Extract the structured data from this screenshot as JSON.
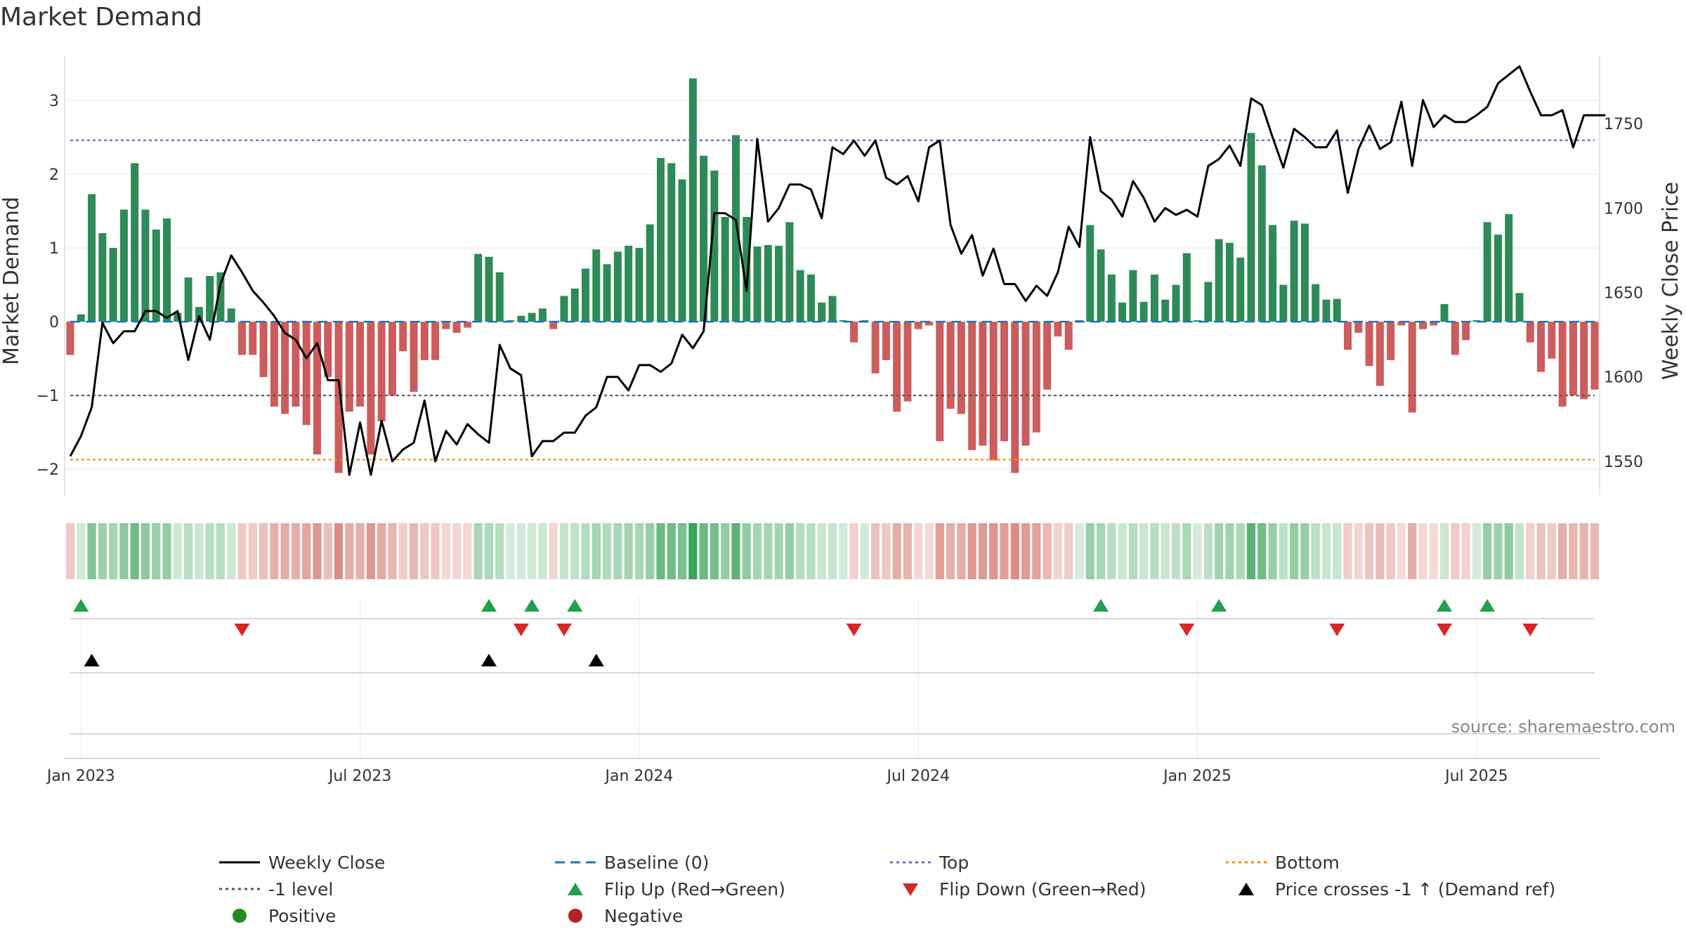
{
  "title": "Market Demand",
  "source_note": "source: sharemaestro.com",
  "colors": {
    "positive": "#2e8b57",
    "negative": "#cd5c5c",
    "close_line": "#000000",
    "baseline": "#1f77b4",
    "top": "#6a6acd",
    "bottom": "#ff8c00",
    "minus1": "#555555",
    "flip_up": "#22a04b",
    "flip_down": "#d62728"
  },
  "chart_data": {
    "type": "bar",
    "title": "Market Demand",
    "ylabel": "Market Demand",
    "y2label": "Weekly Close Price",
    "ylim": [
      -2.35,
      3.6
    ],
    "y2lim": [
      1530,
      1790
    ],
    "yticks": [
      "-2",
      "-1",
      "0",
      "1",
      "2",
      "3"
    ],
    "y2ticks": [
      "1550",
      "1600",
      "1650",
      "1700",
      "1750"
    ],
    "x_ticks": [
      {
        "label": "Jan 2023",
        "week": 1
      },
      {
        "label": "Jul 2023",
        "week": 27
      },
      {
        "label": "Jan 2024",
        "week": 53
      },
      {
        "label": "Jul 2024",
        "week": 79
      },
      {
        "label": "Jan 2025",
        "week": 105
      },
      {
        "label": "Jul 2025",
        "week": 131
      }
    ],
    "reference_lines": {
      "top": 2.46,
      "bottom": -1.87,
      "minus1": -1.0,
      "baseline": 0
    },
    "demand": [
      -0.45,
      0.1,
      1.73,
      1.2,
      1.0,
      1.52,
      2.15,
      1.52,
      1.25,
      1.4,
      0.12,
      0.6,
      0.2,
      0.62,
      0.67,
      0.18,
      -0.45,
      -0.45,
      -0.75,
      -1.15,
      -1.25,
      -1.15,
      -1.4,
      -1.8,
      -0.75,
      -2.05,
      -1.22,
      -1.15,
      -1.8,
      -1.35,
      -1.0,
      -0.4,
      -0.95,
      -0.52,
      -0.52,
      -0.1,
      -0.15,
      -0.08,
      0.92,
      0.88,
      0.67,
      0.02,
      0.08,
      0.12,
      0.18,
      -0.1,
      0.35,
      0.45,
      0.72,
      0.98,
      0.78,
      0.95,
      1.03,
      1.0,
      1.32,
      2.22,
      2.15,
      1.93,
      3.3,
      2.25,
      2.05,
      1.42,
      2.53,
      1.42,
      1.02,
      1.04,
      1.03,
      1.35,
      0.7,
      0.64,
      0.26,
      0.35,
      0.02,
      -0.28,
      0.02,
      -0.7,
      -0.52,
      -1.22,
      -1.08,
      -0.1,
      -0.05,
      -1.62,
      -1.18,
      -1.25,
      -1.74,
      -1.68,
      -1.88,
      -1.62,
      -2.05,
      -1.68,
      -1.5,
      -0.92,
      -0.2,
      -0.38,
      0.02,
      1.31,
      0.98,
      0.64,
      0.26,
      0.7,
      0.27,
      0.64,
      0.3,
      0.5,
      0.93,
      0.02,
      0.54,
      1.12,
      1.07,
      0.87,
      2.56,
      2.12,
      1.31,
      0.5,
      1.37,
      1.33,
      0.51,
      0.3,
      0.31,
      -0.38,
      -0.15,
      -0.6,
      -0.87,
      -0.52,
      -0.05,
      -1.23,
      -0.1,
      -0.05,
      0.24,
      -0.45,
      -0.25,
      0.02,
      1.35,
      1.18,
      1.46,
      0.39,
      -0.28,
      -0.68,
      -0.5,
      -1.15,
      -1.0,
      -1.05,
      -0.92
    ],
    "close": [
      1553,
      1565,
      1582,
      1632,
      1620,
      1627,
      1627,
      1639,
      1639,
      1635,
      1639,
      1610,
      1636,
      1622,
      1655,
      1672,
      1662,
      1651,
      1644,
      1636,
      1626,
      1622,
      1611,
      1620,
      1598,
      1598,
      1542,
      1573,
      1542,
      1574,
      1550,
      1557,
      1561,
      1586,
      1550,
      1568,
      1560,
      1572,
      1566,
      1561,
      1619,
      1605,
      1601,
      1553,
      1562,
      1562,
      1567,
      1567,
      1577,
      1582,
      1600,
      1600,
      1592,
      1607,
      1607,
      1603,
      1608,
      1625,
      1617,
      1627,
      1697,
      1697,
      1693,
      1651,
      1741,
      1692,
      1700,
      1714,
      1714,
      1711,
      1694,
      1736,
      1732,
      1740,
      1731,
      1740,
      1718,
      1714,
      1719,
      1704,
      1736,
      1740,
      1690,
      1673,
      1684,
      1660,
      1676,
      1655,
      1655,
      1645,
      1654,
      1648,
      1662,
      1689,
      1677,
      1742,
      1710,
      1705,
      1695,
      1716,
      1706,
      1692,
      1700,
      1696,
      1699,
      1695,
      1725,
      1729,
      1737,
      1725,
      1765,
      1761,
      1742,
      1724,
      1747,
      1742,
      1736,
      1736,
      1746,
      1709,
      1735,
      1749,
      1735,
      1739,
      1763,
      1725,
      1764,
      1748,
      1755,
      1751,
      1751,
      1755,
      1760,
      1774,
      1779,
      1784,
      1769,
      1755,
      1755,
      1758,
      1736,
      1755,
      1755,
      1755
    ],
    "flip_up_weeks": [
      1,
      39,
      43,
      47,
      96,
      107,
      128,
      132
    ],
    "flip_down_weeks": [
      16,
      42,
      46,
      73,
      104,
      118,
      128,
      136
    ],
    "price_cross_weeks": [
      2,
      39,
      49
    ]
  },
  "legend": [
    {
      "label": "Weekly Close",
      "marker": "solid-line"
    },
    {
      "label": "Baseline (0)",
      "marker": "dash-line"
    },
    {
      "label": "Top",
      "marker": "dot-line"
    },
    {
      "label": "Bottom",
      "marker": "dot-line"
    },
    {
      "label": "-1 level",
      "marker": "dot-line"
    },
    {
      "label": "Flip Up (Red→Green)",
      "marker": "triangle-up"
    },
    {
      "label": "Flip Down (Green→Red)",
      "marker": "triangle-down"
    },
    {
      "label": "Price crosses -1 ↑ (Demand ref)",
      "marker": "triangle-up"
    },
    {
      "label": "Positive",
      "marker": "circle"
    },
    {
      "label": "Negative",
      "marker": "circle"
    }
  ]
}
